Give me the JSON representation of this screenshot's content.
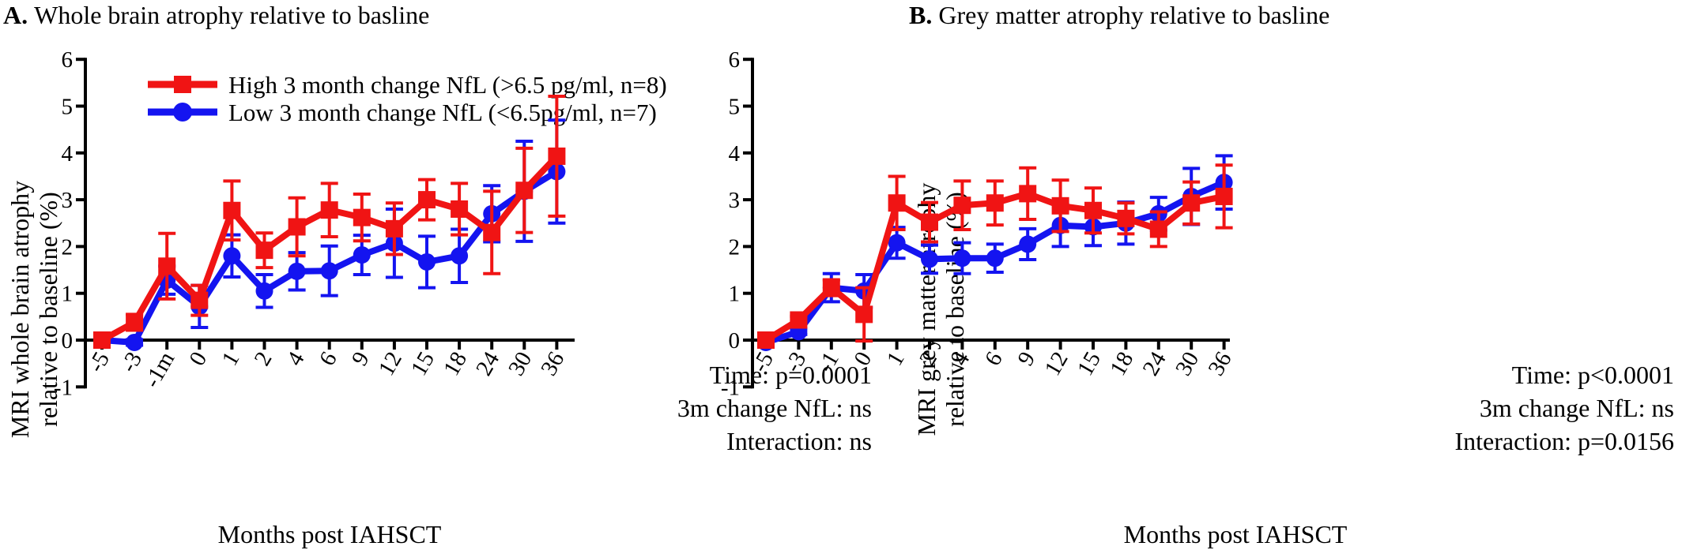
{
  "colors": {
    "high": "#f01414",
    "low": "#1414f0",
    "axis": "#000000"
  },
  "legend": {
    "high": "High 3 month change NfL (>6.5 pg/ml, n=8)",
    "low": "Low 3 month change NfL (<6.5pg/ml, n=7)"
  },
  "chart_data": [
    {
      "type": "line",
      "panel_label": "A.",
      "title": "Whole brain atrophy relative to basline",
      "xlabel": "Months post IAHSCT",
      "ylabel": [
        "MRI whole brain atrophy",
        "relative to baseline (%)"
      ],
      "categories": [
        "-5",
        "-3",
        "-1m",
        "0",
        "1",
        "2",
        "4",
        "6",
        "9",
        "12",
        "15",
        "18",
        "24",
        "30",
        "36"
      ],
      "ylim": [
        -1,
        6
      ],
      "yticks": [
        "-1",
        "0",
        "1",
        "2",
        "3",
        "4",
        "5",
        "6"
      ],
      "annotations": [
        "Time: p=0.0001",
        "3m change NfL: ns",
        "Interaction: ns"
      ],
      "series": [
        {
          "name": "High 3 month change NfL (>6.5 pg/ml, n=8)",
          "color": "high",
          "marker": "square",
          "values": [
            0,
            0.38,
            1.58,
            0.85,
            2.77,
            1.92,
            2.42,
            2.78,
            2.62,
            2.38,
            3.0,
            2.8,
            2.3,
            3.2,
            3.93
          ],
          "err": [
            0,
            0.17,
            0.7,
            0.32,
            0.63,
            0.37,
            0.62,
            0.57,
            0.5,
            0.55,
            0.43,
            0.55,
            0.88,
            0.9,
            1.28
          ]
        },
        {
          "name": "Low 3 month change NfL (<6.5pg/ml, n=7)",
          "color": "low",
          "marker": "circle",
          "values": [
            0,
            -0.05,
            1.28,
            0.72,
            1.8,
            1.05,
            1.47,
            1.48,
            1.82,
            2.07,
            1.67,
            1.8,
            2.7,
            3.18,
            3.6
          ],
          "err": [
            0,
            0.06,
            0.3,
            0.45,
            0.45,
            0.35,
            0.4,
            0.53,
            0.42,
            0.73,
            0.55,
            0.57,
            0.6,
            1.07,
            1.1
          ]
        }
      ]
    },
    {
      "type": "line",
      "panel_label": "B.",
      "title": "Grey matter atrophy relative to basline",
      "xlabel": "Months post IAHSCT",
      "ylabel": [
        "MRI grey matter atrophy",
        "relative to baseline (%)"
      ],
      "categories": [
        "-5",
        "-3",
        "-1",
        "0",
        "1",
        "2",
        "4",
        "6",
        "9",
        "12",
        "15",
        "18",
        "24",
        "30",
        "36"
      ],
      "ylim": [
        -1,
        6
      ],
      "yticks": [
        "-1",
        "0",
        "1",
        "2",
        "3",
        "4",
        "5",
        "6"
      ],
      "annotations": [
        "Time: p<0.0001",
        "3m change NfL: ns",
        "Interaction: p=0.0156"
      ],
      "series": [
        {
          "name": "High 3 month change NfL (>6.5 pg/ml, n=8)",
          "color": "high",
          "marker": "square",
          "values": [
            0,
            0.43,
            1.12,
            0.55,
            2.93,
            2.52,
            2.88,
            2.93,
            3.13,
            2.87,
            2.77,
            2.6,
            2.37,
            2.93,
            3.07
          ],
          "err": [
            0,
            0.08,
            0.17,
            0.57,
            0.57,
            0.42,
            0.52,
            0.47,
            0.55,
            0.55,
            0.48,
            0.33,
            0.37,
            0.45,
            0.67
          ]
        },
        {
          "name": "Low 3 month change NfL (<6.5pg/ml, n=7)",
          "color": "low",
          "marker": "circle",
          "values": [
            -0.05,
            0.18,
            1.12,
            1.05,
            2.08,
            1.73,
            1.75,
            1.75,
            2.05,
            2.45,
            2.42,
            2.5,
            2.7,
            3.07,
            3.37
          ],
          "err": [
            0,
            0.06,
            0.3,
            0.35,
            0.33,
            0.3,
            0.33,
            0.3,
            0.33,
            0.45,
            0.4,
            0.45,
            0.35,
            0.6,
            0.57
          ]
        }
      ]
    }
  ]
}
